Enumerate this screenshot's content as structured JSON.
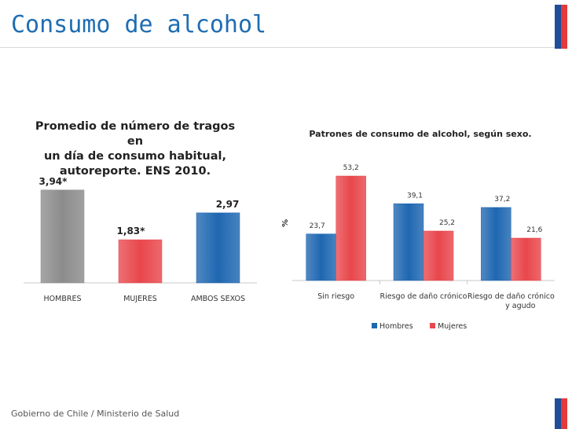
{
  "page": {
    "title": "Consumo de alcohol",
    "footer": "Gobierno de Chile / Ministerio de Salud"
  },
  "chart_data": [
    {
      "type": "bar",
      "title_lines": [
        "Promedio de número de tragos en",
        "un día de consumo habitual,",
        "autoreporte. ENS 2010."
      ],
      "categories": [
        "HOMBRES",
        "MUJERES",
        "AMBOS SEXOS"
      ],
      "values": [
        3.94,
        1.83,
        2.97
      ],
      "value_labels": [
        "3,94*",
        "1,83*",
        "2,97"
      ],
      "colors": [
        "#8c8c8c",
        "#e8474c",
        "#1f67b1"
      ],
      "ylim": [
        0,
        4.5
      ],
      "grid": false
    },
    {
      "type": "bar",
      "title": "Patrones de consumo de alcohol, según sexo.",
      "ylabel": "%",
      "categories": [
        "Sin riesgo",
        "Riesgo de daño crónico",
        "Riesgo de daño crónico y agudo"
      ],
      "category_lines": [
        [
          "Sin riesgo"
        ],
        [
          "Riesgo de daño crónico"
        ],
        [
          "Riesgo de daño crónico",
          "y agudo"
        ]
      ],
      "series": [
        {
          "name": "Hombres",
          "values": [
            23.7,
            39.1,
            37.2
          ],
          "labels": [
            "23,7",
            "39,1",
            "37,2"
          ],
          "color": "#1f67b1"
        },
        {
          "name": "Mujeres",
          "values": [
            53.2,
            25.2,
            21.6
          ],
          "labels": [
            "53,2",
            "25,2",
            "21,6"
          ],
          "color": "#e8474c"
        }
      ],
      "ylim": [
        0,
        60
      ],
      "legend": "bottom",
      "grid": false
    }
  ]
}
